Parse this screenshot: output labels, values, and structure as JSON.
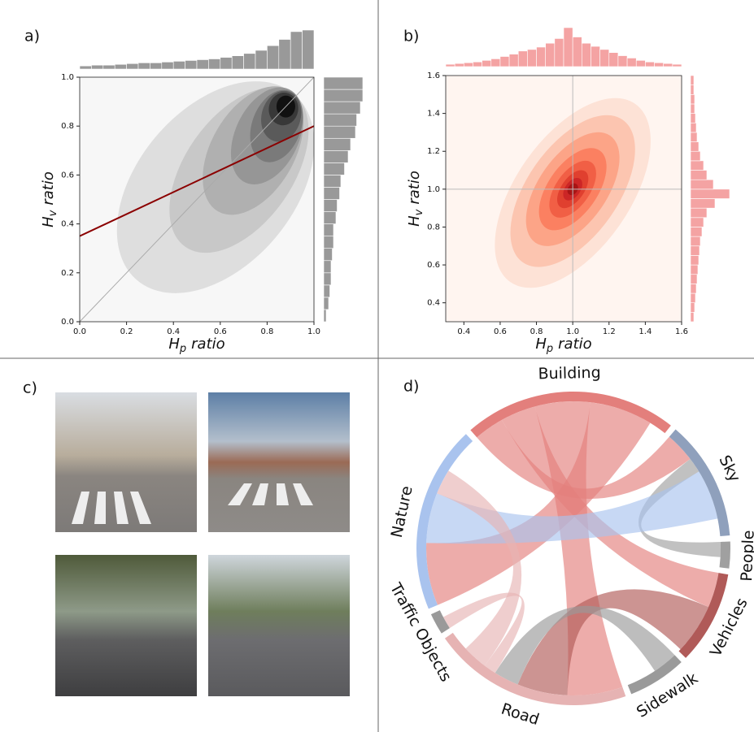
{
  "chart_data": [
    {
      "type": "joint_kde",
      "panel_label": "a)",
      "xlabel": {
        "symbol": "H",
        "subscript": "p",
        "text": "ratio"
      },
      "ylabel": {
        "symbol": "H",
        "subscript": "v",
        "text": "ratio"
      },
      "xlim": [
        0,
        1
      ],
      "ylim": [
        0,
        1
      ],
      "xticks": [
        {
          "value": 0,
          "label": "0.0"
        },
        0.2,
        0.4,
        0.6,
        0.8,
        {
          "value": 1,
          "label": "1.0"
        }
      ],
      "yticks": [
        {
          "value": 0,
          "label": "0.0"
        },
        0.2,
        0.4,
        0.6,
        0.8,
        {
          "value": 1,
          "label": "1.0"
        }
      ],
      "background": "#f7f7f7",
      "contours": [
        {
          "cx": 0.58,
          "cy": 0.55,
          "rx": 0.52,
          "ry": 0.32,
          "angle": -50
        },
        {
          "cx": 0.68,
          "cy": 0.62,
          "rx": 0.4,
          "ry": 0.22,
          "angle": -55
        },
        {
          "cx": 0.74,
          "cy": 0.7,
          "rx": 0.3,
          "ry": 0.17,
          "angle": -60
        },
        {
          "cx": 0.8,
          "cy": 0.76,
          "rx": 0.22,
          "ry": 0.13,
          "angle": -65
        },
        {
          "cx": 0.84,
          "cy": 0.8,
          "rx": 0.16,
          "ry": 0.1,
          "angle": -70
        },
        {
          "cx": 0.86,
          "cy": 0.84,
          "rx": 0.11,
          "ry": 0.08,
          "angle": -75
        },
        {
          "cx": 0.87,
          "cy": 0.87,
          "rx": 0.07,
          "ry": 0.06,
          "angle": -80
        },
        {
          "cx": 0.88,
          "cy": 0.88,
          "rx": 0.04,
          "ry": 0.045,
          "angle": 0
        }
      ],
      "contour_colors": [
        "#dedede",
        "#c8c8c8",
        "#b0b0b0",
        "#969696",
        "#7a7a7a",
        "#5a5a5a",
        "#383838",
        "#111111"
      ],
      "lines": [
        {
          "x": [
            0,
            1
          ],
          "y": [
            0,
            1
          ],
          "color": "#aaaaaa"
        },
        {
          "x": [
            0,
            1
          ],
          "y": [
            0.35,
            0.8
          ],
          "color": "#8b0000"
        }
      ],
      "top_hist": {
        "bins": [
          0,
          0.05,
          0.1,
          0.15,
          0.2,
          0.25,
          0.3,
          0.35,
          0.4,
          0.45,
          0.5,
          0.55,
          0.6,
          0.65,
          0.7,
          0.75,
          0.8,
          0.85,
          0.9,
          0.95,
          1
        ],
        "values": [
          4,
          5,
          5,
          6,
          7,
          8,
          8,
          9,
          10,
          11,
          12,
          13,
          15,
          17,
          20,
          24,
          30,
          38,
          48,
          50
        ],
        "color": "#999999"
      },
      "right_hist": {
        "bins": [
          0,
          0.05,
          0.1,
          0.15,
          0.2,
          0.25,
          0.3,
          0.35,
          0.4,
          0.45,
          0.5,
          0.55,
          0.6,
          0.65,
          0.7,
          0.75,
          0.8,
          0.85,
          0.9,
          0.95,
          1
        ],
        "values": [
          2,
          4,
          5,
          6,
          6,
          7,
          8,
          8,
          10,
          11,
          13,
          14,
          17,
          20,
          22,
          26,
          27,
          30,
          32,
          32
        ],
        "color": "#999999"
      }
    },
    {
      "type": "joint_kde",
      "panel_label": "b)",
      "xlabel": {
        "symbol": "H",
        "subscript": "p",
        "text": "ratio"
      },
      "ylabel": {
        "symbol": "H",
        "subscript": "v",
        "text": "ratio"
      },
      "xlim": [
        0.3,
        1.6
      ],
      "ylim": [
        0.3,
        1.6
      ],
      "xticks": [
        0.4,
        0.6,
        0.8,
        {
          "value": 1,
          "label": "1.0"
        },
        1.2,
        1.4,
        1.6
      ],
      "yticks": [
        0.4,
        0.6,
        0.8,
        {
          "value": 1,
          "label": "1.0"
        },
        1.2,
        1.4,
        1.6
      ],
      "background": "#fff5f0",
      "contours": [
        {
          "cx": 1,
          "cy": 0.98,
          "rx": 0.6,
          "ry": 0.3,
          "angle": -55
        },
        {
          "cx": 1,
          "cy": 0.99,
          "rx": 0.48,
          "ry": 0.24,
          "angle": -55
        },
        {
          "cx": 1,
          "cy": 1,
          "rx": 0.36,
          "ry": 0.18,
          "angle": -55
        },
        {
          "cx": 1,
          "cy": 1,
          "rx": 0.26,
          "ry": 0.13,
          "angle": -55
        },
        {
          "cx": 1,
          "cy": 1,
          "rx": 0.18,
          "ry": 0.09,
          "angle": -55
        },
        {
          "cx": 1,
          "cy": 1,
          "rx": 0.12,
          "ry": 0.06,
          "angle": -55
        },
        {
          "cx": 1,
          "cy": 1,
          "rx": 0.07,
          "ry": 0.04,
          "angle": -55
        },
        {
          "cx": 1,
          "cy": 1,
          "rx": 0.035,
          "ry": 0.025,
          "angle": -55
        }
      ],
      "contour_colors": [
        "#fde2d6",
        "#fcc5b0",
        "#fca487",
        "#fb8061",
        "#f15f45",
        "#e0402f",
        "#cc2626",
        "#a81515"
      ],
      "ref_lines": {
        "x": 1,
        "y": 1,
        "color": "#bbbbbb"
      },
      "top_hist": {
        "bins": [
          0.3,
          0.35,
          0.4,
          0.45,
          0.5,
          0.55,
          0.6,
          0.65,
          0.7,
          0.75,
          0.8,
          0.85,
          0.9,
          0.95,
          1,
          1.05,
          1.1,
          1.15,
          1.2,
          1.25,
          1.3,
          1.35,
          1.4,
          1.45,
          1.5,
          1.55,
          1.6
        ],
        "values": [
          3,
          4,
          5,
          6,
          8,
          10,
          13,
          16,
          20,
          22,
          25,
          30,
          36,
          50,
          38,
          30,
          26,
          22,
          18,
          14,
          11,
          8,
          6,
          5,
          4,
          3
        ],
        "color": "#f4a3a3"
      },
      "right_hist": {
        "bins": [
          0.3,
          0.35,
          0.4,
          0.45,
          0.5,
          0.55,
          0.6,
          0.65,
          0.7,
          0.75,
          0.8,
          0.85,
          0.9,
          0.95,
          1,
          1.05,
          1.1,
          1.15,
          1.2,
          1.25,
          1.3,
          1.35,
          1.4,
          1.45,
          1.5,
          1.55,
          1.6
        ],
        "values": [
          4,
          5,
          6,
          7,
          8,
          9,
          10,
          11,
          12,
          14,
          16,
          20,
          30,
          48,
          28,
          20,
          16,
          12,
          10,
          8,
          7,
          6,
          5,
          5,
          4,
          4
        ],
        "color": "#f4a3a3"
      }
    },
    {
      "type": "chord",
      "panel_label": "d)",
      "groups": [
        {
          "name": "Building",
          "value": 80,
          "color": "#e37f7c"
        },
        {
          "name": "Sky",
          "value": 45,
          "color": "#8fa0bc"
        },
        {
          "name": "People",
          "value": 10,
          "color": "#a0a0a0"
        },
        {
          "name": "Vehicles",
          "value": 35,
          "color": "#b05a58"
        },
        {
          "name": "Sidewalk",
          "value": 22,
          "color": "#9a9a9a"
        },
        {
          "name": "Road",
          "value": 75,
          "color": "#e6b3b3"
        },
        {
          "name": "Traffic Objects",
          "value": 8,
          "color": "#9a9a9a"
        },
        {
          "name": "Nature",
          "value": 70,
          "color": "#a9c3ee"
        }
      ],
      "chords": [
        {
          "source": "Building",
          "target": "Sky",
          "value": 12
        },
        {
          "source": "Building",
          "target": "Vehicles",
          "value": 14
        },
        {
          "source": "Building",
          "target": "Road",
          "value": 22
        },
        {
          "source": "Building",
          "target": "Nature",
          "value": 25
        },
        {
          "source": "People",
          "target": "Sky",
          "value": 6
        },
        {
          "source": "Nature",
          "target": "Sky",
          "value": 20
        },
        {
          "source": "Vehicles",
          "target": "Road",
          "value": 20
        },
        {
          "source": "Sidewalk",
          "target": "Road",
          "value": 10
        },
        {
          "source": "Road",
          "target": "Traffic Objects",
          "value": 5
        },
        {
          "source": "Road",
          "target": "Nature",
          "value": 10
        }
      ]
    }
  ],
  "photo_panel": {
    "label": "c)"
  }
}
